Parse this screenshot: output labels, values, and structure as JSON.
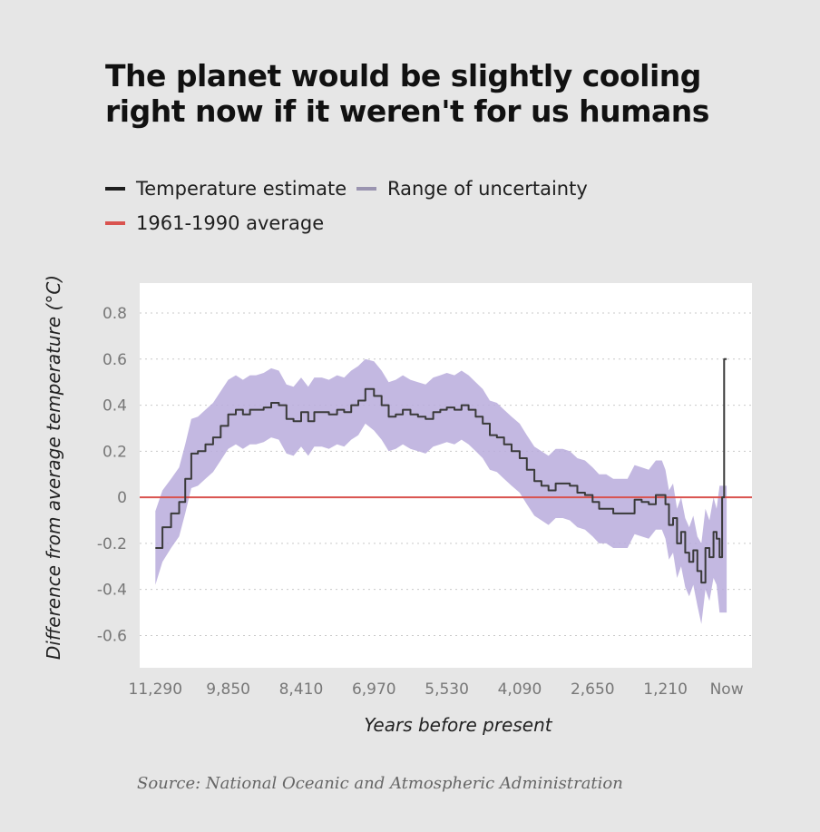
{
  "title": "The planet would be slightly cooling right now if it weren't for us humans",
  "legend": {
    "estimate": "Temperature estimate",
    "uncertainty": "Range of uncertainty",
    "average": "1961-1990 average"
  },
  "source": "Source: National Oceanic and Atmospheric Administration",
  "colors": {
    "estimate": "#3a3a3a",
    "uncertainty": "#b9abdc",
    "average": "#d9534f",
    "plot_bg": "#ffffff",
    "page_bg": "#e6e6e6"
  },
  "chart_data": {
    "type": "area",
    "xlabel": "Years before present",
    "ylabel": "Difference from average temperature (°C)",
    "x_tick_labels": [
      "11,290",
      "9,850",
      "8,410",
      "6,970",
      "5,530",
      "4,090",
      "2,650",
      "1,210",
      "Now"
    ],
    "x_tick_values": [
      11290,
      9850,
      8410,
      6970,
      5530,
      4090,
      2650,
      1210,
      0
    ],
    "x_reversed": true,
    "y_ticks": [
      0.8,
      0.6,
      0.4,
      0.2,
      0,
      -0.2,
      -0.4,
      -0.6
    ],
    "y_tick_labels": [
      "0.8",
      "0.6",
      "0.4",
      "0.2",
      "0",
      "-0.2",
      "-0.4",
      "-0.6"
    ],
    "xlim": [
      11600,
      -500
    ],
    "ylim": [
      -0.74,
      0.93
    ],
    "grid": "horizontal dotted",
    "reference_line": {
      "name": "1961-1990 average",
      "y": 0
    },
    "series": [
      {
        "name": "Temperature estimate",
        "x": [
          11290,
          11150,
          10980,
          10820,
          10700,
          10580,
          10450,
          10300,
          10150,
          10000,
          9850,
          9700,
          9560,
          9420,
          9300,
          9150,
          9000,
          8850,
          8700,
          8560,
          8410,
          8270,
          8150,
          8000,
          7860,
          7700,
          7560,
          7420,
          7280,
          7140,
          6970,
          6820,
          6680,
          6540,
          6400,
          6250,
          6100,
          5950,
          5800,
          5660,
          5530,
          5380,
          5240,
          5100,
          4960,
          4820,
          4680,
          4540,
          4400,
          4250,
          4090,
          3950,
          3800,
          3660,
          3520,
          3380,
          3240,
          3100,
          2950,
          2800,
          2650,
          2520,
          2380,
          2240,
          2100,
          1960,
          1820,
          1680,
          1540,
          1400,
          1280,
          1210,
          1140,
          1060,
          980,
          900,
          820,
          740,
          660,
          580,
          500,
          420,
          340,
          260,
          200,
          140,
          90,
          50,
          0
        ],
        "y": [
          -0.22,
          -0.13,
          -0.07,
          -0.02,
          0.08,
          0.19,
          0.2,
          0.23,
          0.26,
          0.31,
          0.36,
          0.38,
          0.36,
          0.38,
          0.38,
          0.39,
          0.41,
          0.4,
          0.34,
          0.33,
          0.37,
          0.33,
          0.37,
          0.37,
          0.36,
          0.38,
          0.37,
          0.4,
          0.42,
          0.47,
          0.44,
          0.4,
          0.35,
          0.36,
          0.38,
          0.36,
          0.35,
          0.34,
          0.37,
          0.38,
          0.39,
          0.38,
          0.4,
          0.38,
          0.35,
          0.32,
          0.27,
          0.26,
          0.23,
          0.2,
          0.17,
          0.12,
          0.07,
          0.05,
          0.03,
          0.06,
          0.06,
          0.05,
          0.02,
          0.01,
          -0.02,
          -0.05,
          -0.05,
          -0.07,
          -0.07,
          -0.07,
          -0.01,
          -0.02,
          -0.03,
          0.01,
          0.01,
          -0.03,
          -0.12,
          -0.09,
          -0.2,
          -0.15,
          -0.24,
          -0.28,
          -0.23,
          -0.32,
          -0.37,
          -0.22,
          -0.26,
          -0.15,
          -0.18,
          -0.26,
          0.0,
          0.6,
          0.6
        ]
      },
      {
        "name": "Range of uncertainty",
        "x": [
          11290,
          11150,
          10980,
          10820,
          10700,
          10580,
          10450,
          10300,
          10150,
          10000,
          9850,
          9700,
          9560,
          9420,
          9300,
          9150,
          9000,
          8850,
          8700,
          8560,
          8410,
          8270,
          8150,
          8000,
          7860,
          7700,
          7560,
          7420,
          7280,
          7140,
          6970,
          6820,
          6680,
          6540,
          6400,
          6250,
          6100,
          5950,
          5800,
          5660,
          5530,
          5380,
          5240,
          5100,
          4960,
          4820,
          4680,
          4540,
          4400,
          4250,
          4090,
          3950,
          3800,
          3660,
          3520,
          3380,
          3240,
          3100,
          2950,
          2800,
          2650,
          2520,
          2380,
          2240,
          2100,
          1960,
          1820,
          1680,
          1540,
          1400,
          1280,
          1210,
          1140,
          1060,
          980,
          900,
          820,
          740,
          660,
          580,
          500,
          420,
          340,
          260,
          200,
          140,
          90,
          50,
          0
        ],
        "lower": [
          -0.38,
          -0.28,
          -0.22,
          -0.17,
          -0.07,
          0.04,
          0.05,
          0.08,
          0.11,
          0.16,
          0.21,
          0.23,
          0.21,
          0.23,
          0.23,
          0.24,
          0.26,
          0.25,
          0.19,
          0.18,
          0.22,
          0.18,
          0.22,
          0.22,
          0.21,
          0.23,
          0.22,
          0.25,
          0.27,
          0.32,
          0.29,
          0.25,
          0.2,
          0.21,
          0.23,
          0.21,
          0.2,
          0.19,
          0.22,
          0.23,
          0.24,
          0.23,
          0.25,
          0.23,
          0.2,
          0.17,
          0.12,
          0.11,
          0.08,
          0.05,
          0.02,
          -0.03,
          -0.08,
          -0.1,
          -0.12,
          -0.09,
          -0.09,
          -0.1,
          -0.13,
          -0.14,
          -0.17,
          -0.2,
          -0.2,
          -0.22,
          -0.22,
          -0.22,
          -0.16,
          -0.17,
          -0.18,
          -0.14,
          -0.14,
          -0.18,
          -0.27,
          -0.24,
          -0.35,
          -0.3,
          -0.39,
          -0.43,
          -0.38,
          -0.47,
          -0.55,
          -0.4,
          -0.45,
          -0.35,
          -0.38,
          -0.5,
          -0.5,
          -0.5,
          -0.5
        ],
        "upper": [
          -0.06,
          0.03,
          0.08,
          0.13,
          0.23,
          0.34,
          0.35,
          0.38,
          0.41,
          0.46,
          0.51,
          0.53,
          0.51,
          0.53,
          0.53,
          0.54,
          0.56,
          0.55,
          0.49,
          0.48,
          0.52,
          0.48,
          0.52,
          0.52,
          0.51,
          0.53,
          0.52,
          0.55,
          0.57,
          0.6,
          0.59,
          0.55,
          0.5,
          0.51,
          0.53,
          0.51,
          0.5,
          0.49,
          0.52,
          0.53,
          0.54,
          0.53,
          0.55,
          0.53,
          0.5,
          0.47,
          0.42,
          0.41,
          0.38,
          0.35,
          0.32,
          0.27,
          0.22,
          0.2,
          0.18,
          0.21,
          0.21,
          0.2,
          0.17,
          0.16,
          0.13,
          0.1,
          0.1,
          0.08,
          0.08,
          0.08,
          0.14,
          0.13,
          0.12,
          0.16,
          0.16,
          0.12,
          0.03,
          0.06,
          -0.05,
          0.0,
          -0.09,
          -0.13,
          -0.08,
          -0.17,
          -0.2,
          -0.05,
          -0.1,
          0.0,
          -0.05,
          0.05,
          0.05,
          0.05,
          0.05
        ]
      }
    ]
  }
}
